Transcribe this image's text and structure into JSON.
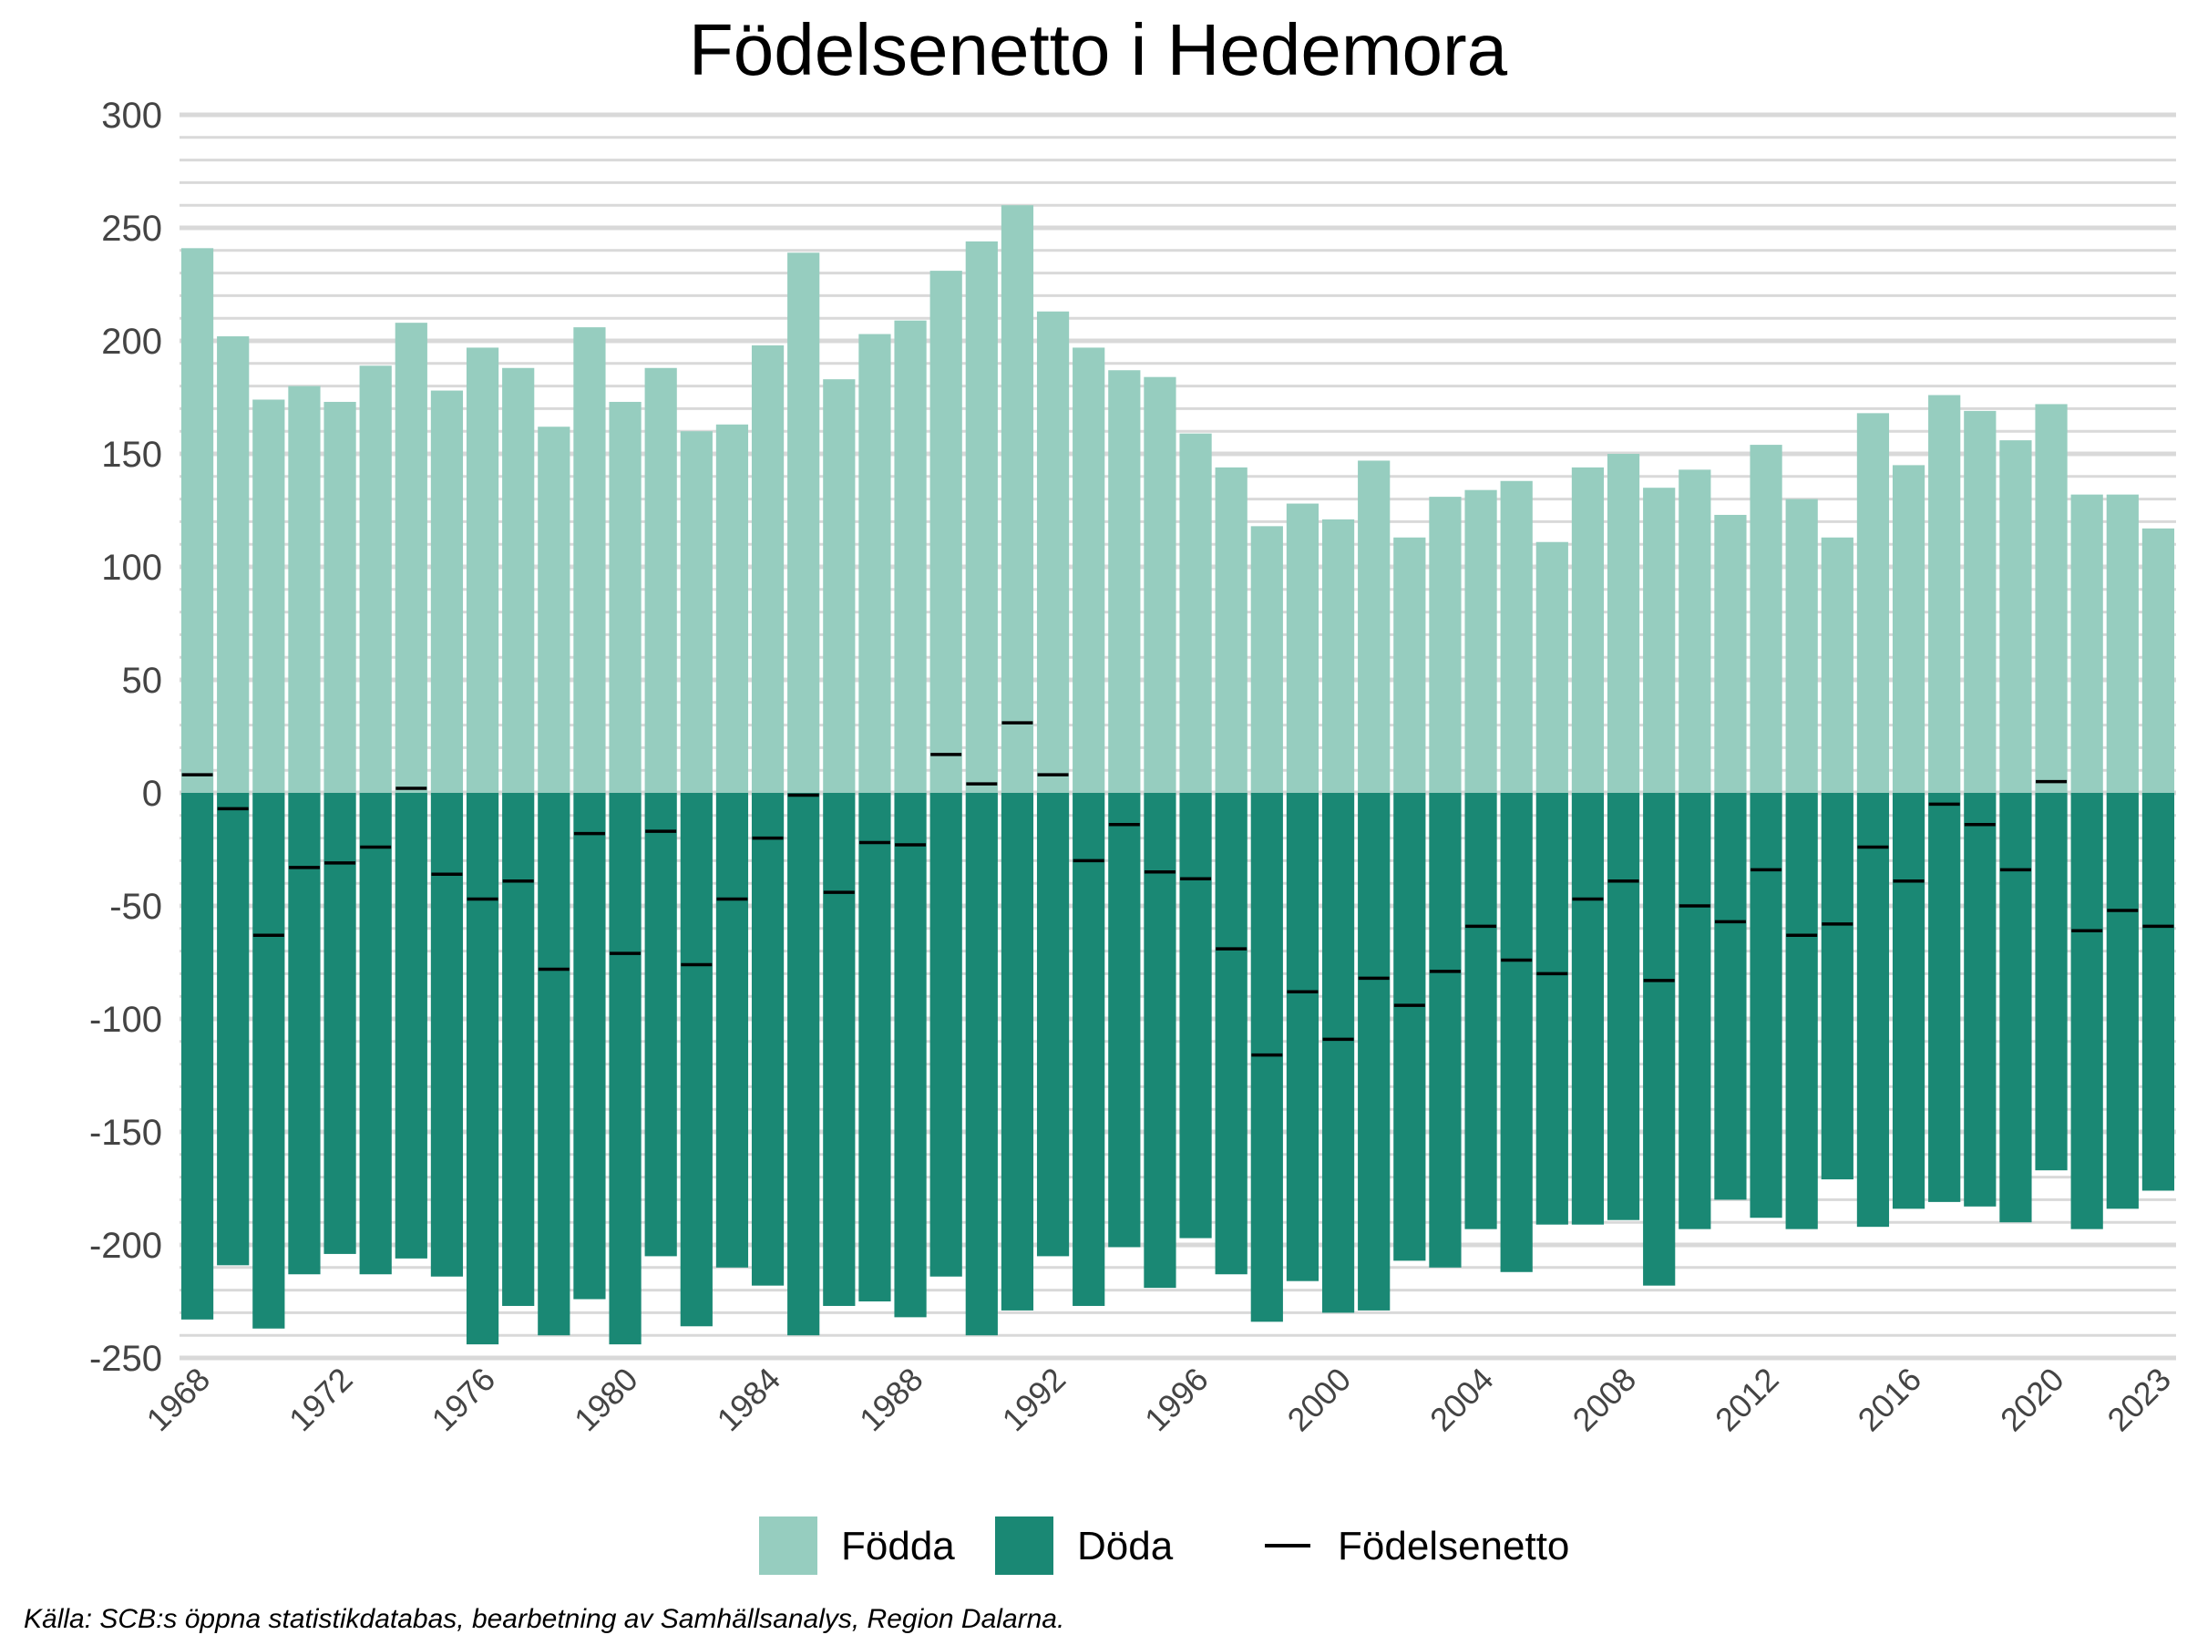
{
  "chart_data": {
    "type": "bar",
    "title": "Födelsenetto i Hedemora",
    "xlabel": "",
    "ylabel": "",
    "ylim": [
      -250,
      300
    ],
    "y_ticks": [
      300,
      250,
      200,
      150,
      100,
      50,
      0,
      -50,
      -100,
      -150,
      -200,
      -250
    ],
    "y_tick_labels": [
      "300",
      "250",
      "200",
      "150",
      "100",
      "50",
      "0",
      "-50",
      "-100",
      "-150",
      "-200",
      "-250"
    ],
    "x": [
      1968,
      1969,
      1970,
      1971,
      1972,
      1973,
      1974,
      1975,
      1976,
      1977,
      1978,
      1979,
      1980,
      1981,
      1982,
      1983,
      1984,
      1985,
      1986,
      1987,
      1988,
      1989,
      1990,
      1991,
      1992,
      1993,
      1994,
      1995,
      1996,
      1997,
      1998,
      1999,
      2000,
      2001,
      2002,
      2003,
      2004,
      2005,
      2006,
      2007,
      2008,
      2009,
      2010,
      2011,
      2012,
      2013,
      2014,
      2015,
      2016,
      2017,
      2018,
      2019,
      2020,
      2021,
      2022,
      2023
    ],
    "x_tick_labels": [
      "1968",
      "1972",
      "1976",
      "1980",
      "1984",
      "1988",
      "1992",
      "1996",
      "2000",
      "2004",
      "2008",
      "2012",
      "2016",
      "2020",
      "2023"
    ],
    "grid": true,
    "legend_position": "bottom",
    "series": [
      {
        "name": "Födda",
        "type": "bar",
        "color": "#96cdbf",
        "values": [
          241,
          202,
          174,
          180,
          173,
          189,
          208,
          178,
          197,
          188,
          162,
          206,
          173,
          188,
          160,
          163,
          198,
          239,
          183,
          203,
          209,
          231,
          244,
          260,
          213,
          197,
          187,
          184,
          159,
          144,
          118,
          128,
          121,
          147,
          113,
          131,
          134,
          138,
          111,
          144,
          150,
          135,
          143,
          123,
          154,
          130,
          113,
          168,
          145,
          176,
          169,
          156,
          172,
          132,
          132,
          117
        ]
      },
      {
        "name": "Döda",
        "type": "bar",
        "color": "#1a8874",
        "values": [
          -233,
          -209,
          -237,
          -213,
          -204,
          -213,
          -206,
          -214,
          -244,
          -227,
          -240,
          -224,
          -244,
          -205,
          -236,
          -210,
          -218,
          -240,
          -227,
          -225,
          -232,
          -214,
          -240,
          -229,
          -205,
          -227,
          -201,
          -219,
          -197,
          -213,
          -234,
          -216,
          -230,
          -229,
          -207,
          -210,
          -193,
          -212,
          -191,
          -191,
          -189,
          -218,
          -193,
          -180,
          -188,
          -193,
          -171,
          -192,
          -184,
          -181,
          -183,
          -190,
          -167,
          -193,
          -184,
          -176
        ]
      },
      {
        "name": "Födelsenetto",
        "type": "line",
        "color": "#000000",
        "values": [
          8,
          -7,
          -63,
          -33,
          -31,
          -24,
          2,
          -36,
          -47,
          -39,
          -78,
          -18,
          -71,
          -17,
          -76,
          -47,
          -20,
          -1,
          -44,
          -22,
          -23,
          17,
          4,
          31,
          8,
          -30,
          -14,
          -35,
          -38,
          -69,
          -116,
          -88,
          -109,
          -82,
          -94,
          -79,
          -59,
          -74,
          -80,
          -47,
          -39,
          -83,
          -50,
          -57,
          -34,
          -63,
          -58,
          -24,
          -39,
          -5,
          -14,
          -34,
          5,
          -61,
          -52,
          -59
        ]
      }
    ],
    "source_note": "Källa: SCB:s öppna statistikdatabas, bearbetning av Samhällsanalys, Region Dalarna."
  }
}
